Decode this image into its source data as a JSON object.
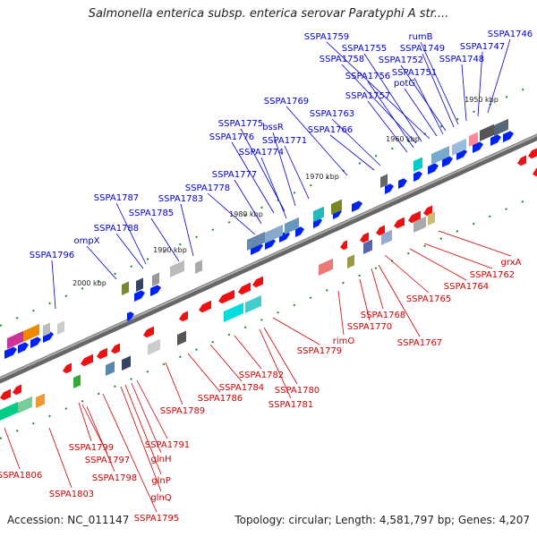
{
  "title": "Salmonella enterica subsp. enterica serovar Paratyphi A str....",
  "footer": {
    "accession": "Accession: NC_011147",
    "summary": "Topology: circular; Length: 4,581,797 bp; Genes: 4,207"
  },
  "colors": {
    "forward_label": "#0000cc",
    "reverse_label": "#cc0000",
    "forward_gene": "#0022ee",
    "reverse_gene": "#ee1111",
    "backbone": "#777777",
    "tick": "#228822"
  },
  "scale_marks": [
    {
      "text": "2000 kbp",
      "pos": 0.0
    },
    {
      "text": "1990 kbp",
      "pos": 1.0
    },
    {
      "text": "1980 kbp",
      "pos": 2.0
    },
    {
      "text": "1970 kbp",
      "pos": 3.0
    },
    {
      "text": "1960 kbp",
      "pos": 4.0
    },
    {
      "text": "1950 kbp",
      "pos": 5.0
    }
  ],
  "forward_genes": [
    {
      "text": "SSPA1796"
    },
    {
      "text": "ompX"
    },
    {
      "text": "SSPA1788"
    },
    {
      "text": "SSPA1787"
    },
    {
      "text": "SSPA1785"
    },
    {
      "text": "SSPA1783"
    },
    {
      "text": "SSPA1778"
    },
    {
      "text": "SSPA1777"
    },
    {
      "text": "SSPA1774"
    },
    {
      "text": "SSPA1776"
    },
    {
      "text": "SSPA1775"
    },
    {
      "text": "bssR"
    },
    {
      "text": "SSPA1771"
    },
    {
      "text": "SSPA1769"
    },
    {
      "text": "SSPA1766"
    },
    {
      "text": "SSPA1763"
    },
    {
      "text": "SSPA1757"
    },
    {
      "text": "SSPA1756"
    },
    {
      "text": "potG"
    },
    {
      "text": "SSPA1751"
    },
    {
      "text": "SSPA1758"
    },
    {
      "text": "SSPA1755"
    },
    {
      "text": "SSPA1759"
    },
    {
      "text": "SSPA1752"
    },
    {
      "text": "SSPA1749"
    },
    {
      "text": "rumB"
    },
    {
      "text": "SSPA1748"
    },
    {
      "text": "SSPA1747"
    },
    {
      "text": "SSPA1746"
    }
  ],
  "reverse_genes": [
    {
      "text": "SSPA1806"
    },
    {
      "text": "SSPA1803"
    },
    {
      "text": "SSPA1799"
    },
    {
      "text": "SSPA1797"
    },
    {
      "text": "SSPA1798"
    },
    {
      "text": "SSPA1795"
    },
    {
      "text": "glnQ"
    },
    {
      "text": "glnP"
    },
    {
      "text": "glnH"
    },
    {
      "text": "SSPA1791"
    },
    {
      "text": "SSPA1789"
    },
    {
      "text": "SSPA1786"
    },
    {
      "text": "SSPA1784"
    },
    {
      "text": "SSPA1782"
    },
    {
      "text": "SSPA1781"
    },
    {
      "text": "SSPA1780"
    },
    {
      "text": "SSPA1779"
    },
    {
      "text": "rimO"
    },
    {
      "text": "SSPA1770"
    },
    {
      "text": "SSPA1768"
    },
    {
      "text": "SSPA1767"
    },
    {
      "text": "SSPA1765"
    },
    {
      "text": "SSPA1764"
    },
    {
      "text": "SSPA1762"
    },
    {
      "text": "grxA"
    }
  ]
}
